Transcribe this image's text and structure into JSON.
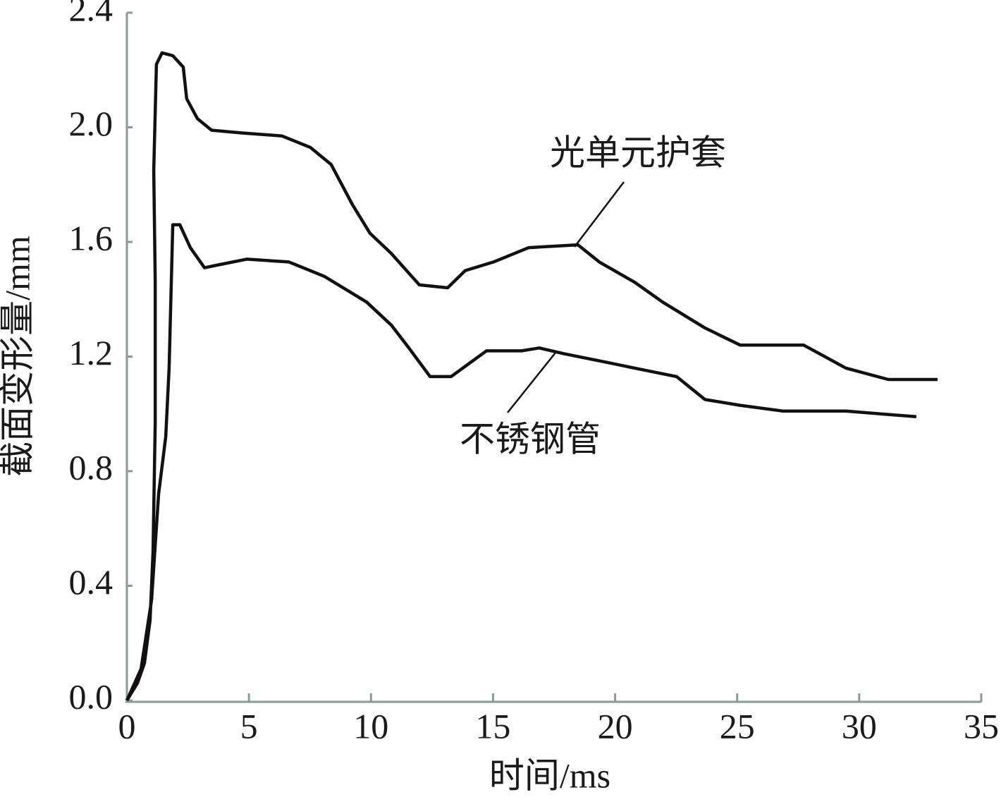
{
  "chart_data": {
    "type": "line",
    "xlabel": "时间/ms",
    "ylabel": "截面变形量/mm",
    "xlim": [
      0,
      35
    ],
    "xticks": [
      0,
      5,
      10,
      15,
      20,
      25,
      30,
      35
    ],
    "ylim": [
      0,
      2.4
    ],
    "yticks": [
      {
        "value": 0,
        "label": "0.0"
      },
      0.4,
      0.8,
      1.2,
      1.6,
      {
        "value": 2,
        "label": "2.0"
      },
      2.4
    ],
    "grid": false,
    "series": [
      {
        "name": "光单元护套",
        "color": "#111111",
        "x": [
          0,
          0.43,
          0.72,
          0.95,
          1.07,
          1.16,
          1.16,
          1.1,
          1.21,
          1.44,
          1.88,
          2.31,
          2.45,
          2.89,
          3.47,
          4.76,
          6.35,
          7.51,
          8.37,
          9.24,
          9.96,
          10.83,
          11.98,
          13.14,
          13.86,
          15.02,
          16.46,
          18.48,
          19.35,
          20.79,
          21.95,
          23.68,
          25.12,
          26.86,
          27.72,
          28.59,
          29.45,
          31.19,
          33.21
        ],
        "values": [
          0,
          0.06,
          0.13,
          0.28,
          0.52,
          0.97,
          1.46,
          1.85,
          2.22,
          2.26,
          2.25,
          2.21,
          2.1,
          2.03,
          1.99,
          1.98,
          1.97,
          1.93,
          1.87,
          1.73,
          1.63,
          1.56,
          1.45,
          1.44,
          1.5,
          1.53,
          1.58,
          1.59,
          1.53,
          1.46,
          1.39,
          1.3,
          1.24,
          1.24,
          1.24,
          1.2,
          1.16,
          1.12,
          1.12
        ]
      },
      {
        "name": "不锈钢管",
        "color": "#111111",
        "x": [
          0,
          0.58,
          1.01,
          1.3,
          1.59,
          1.73,
          1.88,
          2.17,
          2.6,
          3.18,
          3.75,
          4.91,
          6.64,
          8.09,
          9.82,
          10.83,
          11.55,
          12.42,
          13.28,
          14.73,
          16.17,
          16.89,
          17.9,
          19.64,
          20.79,
          22.52,
          23.68,
          25.12,
          26.86,
          29.45,
          32.34
        ],
        "values": [
          0,
          0.11,
          0.35,
          0.72,
          0.92,
          1.16,
          1.66,
          1.66,
          1.58,
          1.51,
          1.52,
          1.54,
          1.53,
          1.48,
          1.39,
          1.31,
          1.23,
          1.13,
          1.13,
          1.22,
          1.22,
          1.23,
          1.21,
          1.18,
          1.16,
          1.13,
          1.05,
          1.03,
          1.01,
          1.01,
          0.99
        ]
      }
    ]
  }
}
